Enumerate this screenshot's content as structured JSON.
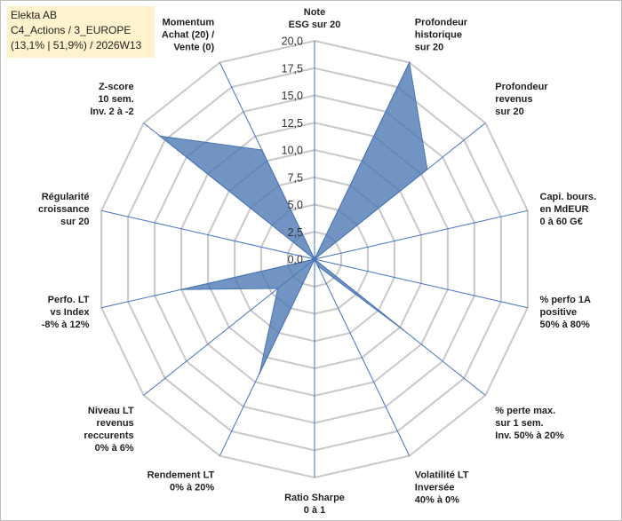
{
  "header": {
    "line1": "Elekta AB",
    "line2": "C4_Actions / 3_EUROPE",
    "line3": "(13,1% | 51,9%) / 2026W13"
  },
  "chart_data": {
    "type": "radar",
    "title": "",
    "rlim": [
      0,
      20
    ],
    "ticks": [
      "0,0",
      "2,5",
      "5,0",
      "7,5",
      "10,0",
      "12,5",
      "15,0",
      "17,5",
      "20,0"
    ],
    "axes": [
      {
        "label": [
          "Note",
          "ESG sur 20"
        ]
      },
      {
        "label": [
          "Profondeur",
          "historique",
          "sur 20"
        ]
      },
      {
        "label": [
          "Profondeur",
          "revenus",
          "sur 20"
        ]
      },
      {
        "label": [
          "Capi. bours.",
          "en MdEUR",
          "0 à 60 G€"
        ]
      },
      {
        "label": [
          "% perfo 1A",
          "positive",
          "50% à 80%"
        ]
      },
      {
        "label": [
          "% perte max.",
          "sur 1 sem.",
          "Inv. 50% à 20%"
        ]
      },
      {
        "label": [
          "Volatilité LT",
          "Inversée",
          "40% à 0%"
        ]
      },
      {
        "label": [
          "Ratio Sharpe",
          "0 à 1"
        ]
      },
      {
        "label": [
          "Rendement LT",
          "0% à 20%"
        ]
      },
      {
        "label": [
          "Niveau LT",
          "revenus",
          "reccurents",
          "0% à 6%"
        ]
      },
      {
        "label": [
          "Perfo. LT",
          "vs Index",
          "-8% à 12%"
        ]
      },
      {
        "label": [
          "Régularité",
          "croissance",
          "sur 20"
        ]
      },
      {
        "label": [
          "Z-score",
          "10 sem.",
          "Inv. 2 à -2"
        ]
      },
      {
        "label": [
          "Momentum",
          "Achat (20) /",
          "Vente (0)"
        ]
      }
    ],
    "series": [
      {
        "values": [
          0,
          20,
          13.2,
          0,
          0,
          10.4,
          0.7,
          0,
          11.6,
          4.3,
          12.5,
          0,
          18.1,
          11.1
        ],
        "color": "#4a76b2",
        "fill_opacity": 0.78
      }
    ],
    "grid": true,
    "colors": {
      "ring": "#c8c8c8",
      "spoke": "#4472c4"
    }
  }
}
